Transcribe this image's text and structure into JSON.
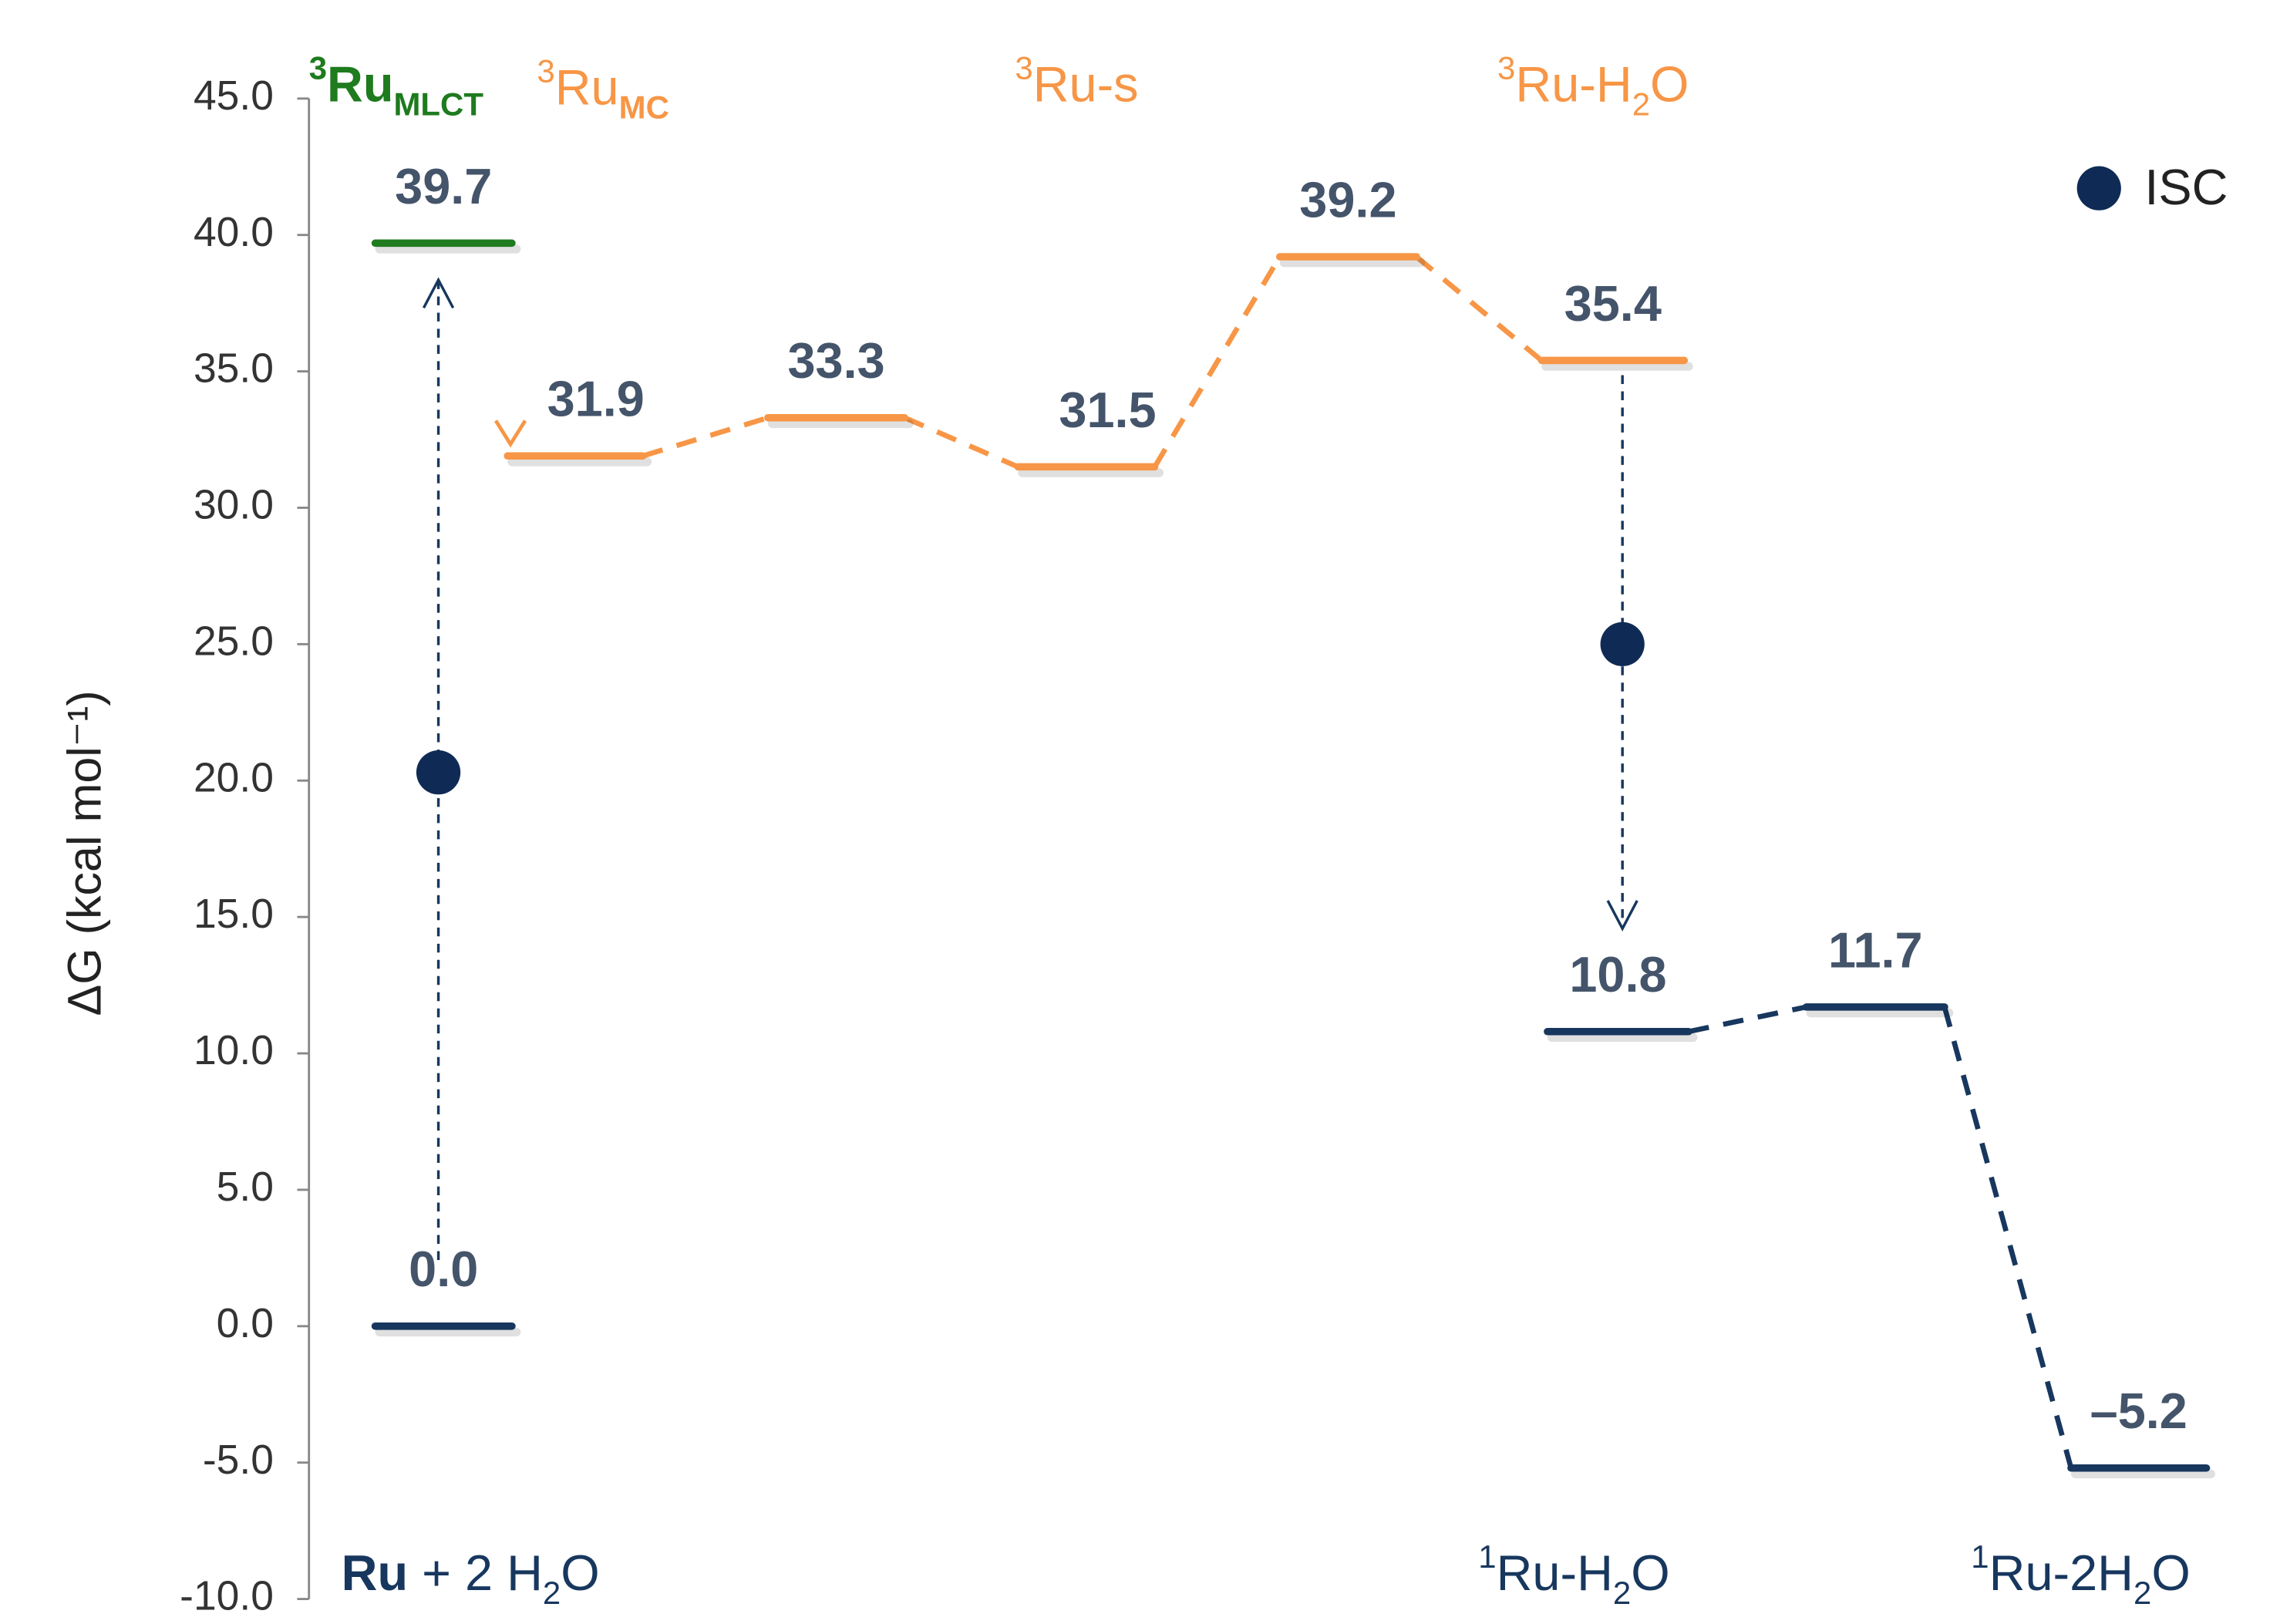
{
  "chart_data": {
    "type": "energy-profile",
    "ylabel": "ΔG (kcal mol⁻¹)",
    "ylim": [
      -10,
      45
    ],
    "yticks": [
      {
        "value": -10,
        "label": "-10.0"
      },
      {
        "value": -5,
        "label": "-5.0"
      },
      {
        "value": 0,
        "label": "0.0"
      },
      {
        "value": 5,
        "label": "5.0"
      },
      {
        "value": 10,
        "label": "10.0"
      },
      {
        "value": 15,
        "label": "15.0"
      },
      {
        "value": 20,
        "label": "20.0"
      },
      {
        "value": 25,
        "label": "25.0"
      },
      {
        "value": 30,
        "label": "30.0"
      },
      {
        "value": 35,
        "label": "35.0"
      },
      {
        "value": 40,
        "label": "40.0"
      },
      {
        "value": 45,
        "label": "45.0"
      }
    ],
    "values": [
      0,
      39.7,
      31.9,
      33.3,
      31.5,
      39.2,
      35.4,
      10.8,
      11.7,
      -5.2
    ],
    "value_labels": [
      "0.0",
      "39.7",
      "31.9",
      "33.3",
      "31.5",
      "39.2",
      "35.4",
      "10.8",
      "11.7",
      "–5.2"
    ],
    "colors": [
      "#17375e",
      "#1e7b1e",
      "#f79646",
      "#f79646",
      "#f79646",
      "#f79646",
      "#f79646",
      "#17375e",
      "#17375e",
      "#17375e"
    ],
    "series": [
      {
        "name": "ISC",
        "color": "#0f2b55",
        "values": [
          20.3,
          25.0
        ]
      }
    ],
    "annotations": [
      {
        "color": "#1e7b1e",
        "parts": [
          {
            "text": "3",
            "style": "sup bold"
          },
          {
            "text": "Ru",
            "style": "bold"
          },
          {
            "text": "MLCT",
            "style": "sub bold"
          }
        ]
      },
      {
        "color": "#f79646",
        "parts": [
          {
            "text": "3",
            "style": "sup"
          },
          {
            "text": "Ru",
            "style": ""
          },
          {
            "text": "MC",
            "style": "sub bold"
          }
        ]
      },
      {
        "color": "#f79646",
        "parts": [
          {
            "text": "3",
            "style": "sup"
          },
          {
            "text": "Ru-s",
            "style": ""
          }
        ]
      },
      {
        "color": "#f79646",
        "parts": [
          {
            "text": "3",
            "style": "sup"
          },
          {
            "text": "Ru-H",
            "style": ""
          },
          {
            "text": "2",
            "style": "sub"
          },
          {
            "text": "O",
            "style": ""
          }
        ]
      },
      {
        "color": "#17375e",
        "parts": [
          {
            "text": "Ru",
            "style": "bold"
          },
          {
            "text": " + 2 H",
            "style": ""
          },
          {
            "text": "2",
            "style": "sub"
          },
          {
            "text": "O",
            "style": ""
          }
        ]
      },
      {
        "color": "#17375e",
        "parts": [
          {
            "text": "1",
            "style": "sup"
          },
          {
            "text": "Ru-H",
            "style": ""
          },
          {
            "text": "2",
            "style": "sub"
          },
          {
            "text": "O",
            "style": ""
          }
        ]
      },
      {
        "color": "#17375e",
        "parts": [
          {
            "text": "1",
            "style": "sup"
          },
          {
            "text": "Ru-2H",
            "style": ""
          },
          {
            "text": "2",
            "style": "sub"
          },
          {
            "text": "O",
            "style": ""
          }
        ]
      }
    ]
  }
}
